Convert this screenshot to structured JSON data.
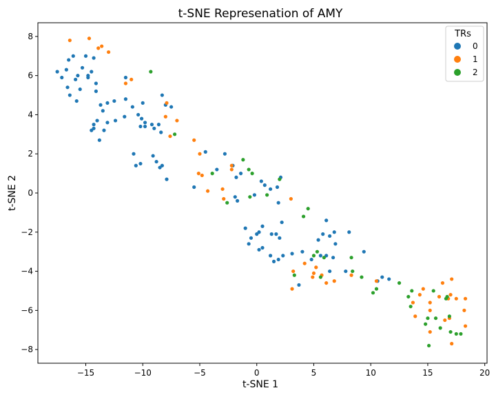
{
  "chart_data": {
    "type": "scatter",
    "title": "t-SNE Represenation of AMY",
    "xlabel": "t-SNE 1",
    "ylabel": "t-SNE 2",
    "xlim": [
      -19.2,
      20.2
    ],
    "ylim": [
      -8.7,
      8.7
    ],
    "xticks": [
      -15,
      -10,
      -5,
      0,
      5,
      10,
      15,
      20
    ],
    "yticks": [
      -8,
      -6,
      -4,
      -2,
      0,
      2,
      4,
      6,
      8
    ],
    "grid": false,
    "legend": {
      "title": "TRs",
      "position": "top-right"
    },
    "series": [
      {
        "name": "0",
        "color": "#1f77b4",
        "points": [
          [
            -17.5,
            6.2
          ],
          [
            -17.1,
            5.9
          ],
          [
            -16.7,
            6.3
          ],
          [
            -16.5,
            6.8
          ],
          [
            -16.1,
            7.0
          ],
          [
            -15.7,
            6.0
          ],
          [
            -15.3,
            6.4
          ],
          [
            -15.0,
            7.0
          ],
          [
            -14.8,
            5.9
          ],
          [
            -14.5,
            6.2
          ],
          [
            -14.3,
            6.9
          ],
          [
            -16.6,
            5.4
          ],
          [
            -16.4,
            5.0
          ],
          [
            -15.9,
            5.8
          ],
          [
            -15.5,
            5.3
          ],
          [
            -14.8,
            6.0
          ],
          [
            -14.1,
            5.6
          ],
          [
            -14.1,
            5.2
          ],
          [
            -15.8,
            4.7
          ],
          [
            -13.7,
            4.5
          ],
          [
            -13.5,
            4.2
          ],
          [
            -13.1,
            4.6
          ],
          [
            -12.5,
            4.7
          ],
          [
            -11.5,
            4.8
          ],
          [
            -11.5,
            5.9
          ],
          [
            -10.9,
            4.4
          ],
          [
            -10.0,
            4.6
          ],
          [
            -14.3,
            3.5
          ],
          [
            -14.0,
            3.7
          ],
          [
            -13.4,
            3.2
          ],
          [
            -13.1,
            3.6
          ],
          [
            -12.4,
            3.7
          ],
          [
            -10.4,
            4.0
          ],
          [
            -10.1,
            3.8
          ],
          [
            -9.8,
            3.6
          ],
          [
            -9.2,
            3.5
          ],
          [
            -11.6,
            3.9
          ],
          [
            -8.3,
            5.0
          ],
          [
            -8.0,
            4.5
          ],
          [
            -7.5,
            4.4
          ],
          [
            -14.5,
            3.2
          ],
          [
            -14.3,
            3.3
          ],
          [
            -13.8,
            2.7
          ],
          [
            -10.2,
            3.4
          ],
          [
            -9.8,
            3.4
          ],
          [
            -9.0,
            3.3
          ],
          [
            -8.6,
            3.5
          ],
          [
            -8.4,
            3.1
          ],
          [
            -10.8,
            2.0
          ],
          [
            -10.6,
            1.4
          ],
          [
            -10.2,
            1.5
          ],
          [
            -9.1,
            1.9
          ],
          [
            -8.8,
            1.6
          ],
          [
            -8.5,
            1.3
          ],
          [
            -8.3,
            1.4
          ],
          [
            -7.9,
            0.7
          ],
          [
            -5.5,
            0.3
          ],
          [
            -4.5,
            2.1
          ],
          [
            -3.5,
            1.2
          ],
          [
            -2.8,
            2.0
          ],
          [
            -2.1,
            1.4
          ],
          [
            -1.8,
            0.8
          ],
          [
            -1.4,
            1.0
          ],
          [
            -1.9,
            -0.2
          ],
          [
            -1.7,
            -0.4
          ],
          [
            -0.2,
            -0.1
          ],
          [
            0.4,
            0.6
          ],
          [
            0.7,
            0.4
          ],
          [
            1.2,
            0.2
          ],
          [
            1.8,
            0.3
          ],
          [
            2.1,
            0.8
          ],
          [
            1.9,
            -0.5
          ],
          [
            -1.0,
            -1.8
          ],
          [
            -0.7,
            -2.6
          ],
          [
            -0.5,
            -2.3
          ],
          [
            0.0,
            -2.1
          ],
          [
            0.2,
            -2.0
          ],
          [
            0.5,
            -1.7
          ],
          [
            0.2,
            -2.9
          ],
          [
            0.5,
            -2.8
          ],
          [
            1.3,
            -2.1
          ],
          [
            1.7,
            -2.1
          ],
          [
            2.0,
            -2.3
          ],
          [
            2.2,
            -1.5
          ],
          [
            1.2,
            -3.2
          ],
          [
            1.5,
            -3.5
          ],
          [
            1.9,
            -3.4
          ],
          [
            2.3,
            -3.2
          ],
          [
            3.1,
            -3.1
          ],
          [
            4.0,
            -3.0
          ],
          [
            3.7,
            -4.7
          ],
          [
            4.8,
            -3.4
          ],
          [
            5.4,
            -2.4
          ],
          [
            5.8,
            -2.1
          ],
          [
            6.1,
            -1.4
          ],
          [
            6.4,
            -2.2
          ],
          [
            5.6,
            -3.2
          ],
          [
            6.1,
            -3.2
          ],
          [
            6.4,
            -4.0
          ],
          [
            6.7,
            -3.3
          ],
          [
            6.8,
            -2.0
          ],
          [
            6.9,
            -2.6
          ],
          [
            7.8,
            -4.0
          ],
          [
            8.1,
            -2.0
          ],
          [
            9.4,
            -3.0
          ],
          [
            10.6,
            -4.5
          ],
          [
            11.0,
            -4.3
          ],
          [
            11.6,
            -4.4
          ]
        ]
      },
      {
        "name": "1",
        "color": "#ff7f0e",
        "points": [
          [
            -16.4,
            7.8
          ],
          [
            -14.7,
            7.9
          ],
          [
            -13.9,
            7.4
          ],
          [
            -13.6,
            7.5
          ],
          [
            -13.0,
            7.2
          ],
          [
            -11.5,
            5.6
          ],
          [
            -11.0,
            5.8
          ],
          [
            -7.9,
            4.6
          ],
          [
            -8.0,
            3.9
          ],
          [
            -7.0,
            3.7
          ],
          [
            -7.6,
            2.9
          ],
          [
            -5.5,
            2.7
          ],
          [
            -5.1,
            1.0
          ],
          [
            -4.8,
            0.9
          ],
          [
            -5.0,
            2.0
          ],
          [
            -4.3,
            0.1
          ],
          [
            -2.2,
            1.4
          ],
          [
            -2.2,
            1.2
          ],
          [
            -3.0,
            0.2
          ],
          [
            -2.9,
            -0.3
          ],
          [
            3.0,
            -0.3
          ],
          [
            3.2,
            -4.0
          ],
          [
            3.1,
            -4.9
          ],
          [
            4.2,
            -3.6
          ],
          [
            4.9,
            -4.3
          ],
          [
            5.0,
            -4.1
          ],
          [
            5.2,
            -3.8
          ],
          [
            5.7,
            -4.2
          ],
          [
            6.1,
            -4.6
          ],
          [
            6.8,
            -4.5
          ],
          [
            8.3,
            -4.2
          ],
          [
            10.5,
            -4.5
          ],
          [
            13.7,
            -5.6
          ],
          [
            13.9,
            -6.3
          ],
          [
            14.3,
            -5.2
          ],
          [
            14.6,
            -4.9
          ],
          [
            15.2,
            -5.6
          ],
          [
            15.2,
            -6.0
          ],
          [
            15.2,
            -7.1
          ],
          [
            16.3,
            -4.6
          ],
          [
            16.5,
            -6.5
          ],
          [
            16.8,
            -5.4
          ],
          [
            17.0,
            -5.2
          ],
          [
            17.1,
            -4.4
          ],
          [
            16.9,
            -6.4
          ],
          [
            17.1,
            -7.7
          ],
          [
            17.5,
            -5.4
          ],
          [
            18.2,
            -6.0
          ],
          [
            18.3,
            -6.8
          ],
          [
            18.3,
            -5.4
          ],
          [
            16.0,
            -5.3
          ]
        ]
      },
      {
        "name": "2",
        "color": "#2ca02c",
        "points": [
          [
            -9.3,
            6.2
          ],
          [
            -7.2,
            3.0
          ],
          [
            -3.9,
            1.0
          ],
          [
            -2.6,
            -0.5
          ],
          [
            -1.2,
            1.7
          ],
          [
            -0.7,
            1.2
          ],
          [
            -0.4,
            1.0
          ],
          [
            -0.6,
            -0.2
          ],
          [
            0.9,
            -0.1
          ],
          [
            2.0,
            0.7
          ],
          [
            4.1,
            -1.2
          ],
          [
            4.5,
            -0.8
          ],
          [
            5.0,
            -3.2
          ],
          [
            5.3,
            -3.0
          ],
          [
            5.9,
            -3.3
          ],
          [
            5.6,
            -4.3
          ],
          [
            3.3,
            -4.2
          ],
          [
            8.3,
            -3.3
          ],
          [
            8.4,
            -4.0
          ],
          [
            9.2,
            -4.3
          ],
          [
            10.2,
            -5.1
          ],
          [
            10.5,
            -4.9
          ],
          [
            12.5,
            -4.6
          ],
          [
            13.3,
            -5.3
          ],
          [
            13.5,
            -5.8
          ],
          [
            13.6,
            -5.0
          ],
          [
            14.8,
            -6.7
          ],
          [
            15.1,
            -7.8
          ],
          [
            15.5,
            -5.0
          ],
          [
            15.7,
            -6.4
          ],
          [
            16.1,
            -6.9
          ],
          [
            16.6,
            -5.4
          ],
          [
            16.7,
            -5.3
          ],
          [
            16.9,
            -6.3
          ],
          [
            17.0,
            -7.1
          ],
          [
            17.5,
            -7.2
          ],
          [
            17.9,
            -7.2
          ],
          [
            15.0,
            -6.4
          ]
        ]
      }
    ]
  }
}
